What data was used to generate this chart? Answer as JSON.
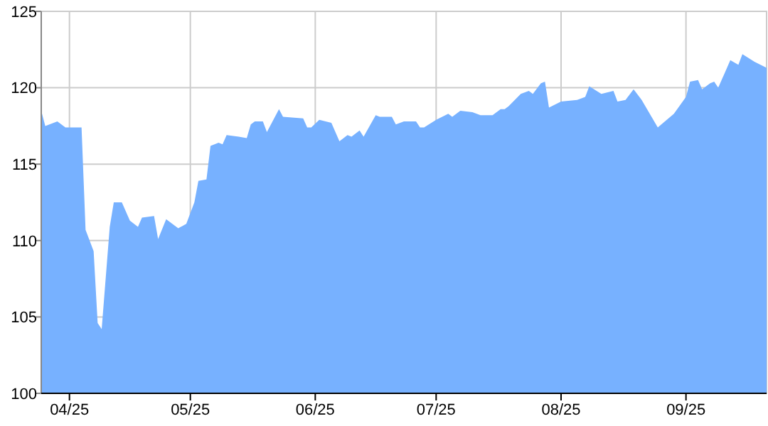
{
  "chart_data": {
    "type": "area",
    "x": [
      "2025-03-25",
      "2025-03-26",
      "2025-03-29",
      "2025-03-31",
      "2025-04-04",
      "2025-04-05",
      "2025-04-07",
      "2025-04-08",
      "2025-04-09",
      "2025-04-11",
      "2025-04-12",
      "2025-04-14",
      "2025-04-16",
      "2025-04-18",
      "2025-04-19",
      "2025-04-22",
      "2025-04-23",
      "2025-04-25",
      "2025-04-28",
      "2025-04-30",
      "2025-05-02",
      "2025-05-03",
      "2025-05-05",
      "2025-05-06",
      "2025-05-08",
      "2025-05-09",
      "2025-05-10",
      "2025-05-13",
      "2025-05-15",
      "2025-05-16",
      "2025-05-17",
      "2025-05-19",
      "2025-05-20",
      "2025-05-23",
      "2025-05-24",
      "2025-05-29",
      "2025-05-30",
      "2025-05-31",
      "2025-06-02",
      "2025-06-05",
      "2025-06-07",
      "2025-06-09",
      "2025-06-10",
      "2025-06-12",
      "2025-06-13",
      "2025-06-16",
      "2025-06-17",
      "2025-06-20",
      "2025-06-21",
      "2025-06-23",
      "2025-06-26",
      "2025-06-27",
      "2025-06-28",
      "2025-07-01",
      "2025-07-04",
      "2025-07-05",
      "2025-07-07",
      "2025-07-10",
      "2025-07-12",
      "2025-07-15",
      "2025-07-17",
      "2025-07-18",
      "2025-07-19",
      "2025-07-22",
      "2025-07-24",
      "2025-07-25",
      "2025-07-27",
      "2025-07-28",
      "2025-07-29",
      "2025-08-01",
      "2025-08-05",
      "2025-08-07",
      "2025-08-08",
      "2025-08-11",
      "2025-08-14",
      "2025-08-15",
      "2025-08-17",
      "2025-08-19",
      "2025-08-21",
      "2025-08-25",
      "2025-08-29",
      "2025-09-01",
      "2025-09-02",
      "2025-09-04",
      "2025-09-05",
      "2025-09-07",
      "2025-09-08",
      "2025-09-09",
      "2025-09-12",
      "2025-09-14",
      "2025-09-15",
      "2025-09-18",
      "2025-09-21"
    ],
    "series": [
      {
        "color": "#77b1ff",
        "values": [
          118.5,
          117.5,
          117.8,
          117.4,
          117.4,
          110.7,
          109.3,
          104.6,
          104.2,
          110.9,
          112.5,
          112.5,
          111.3,
          110.9,
          111.5,
          111.6,
          110.1,
          111.4,
          110.8,
          111.1,
          112.5,
          113.9,
          114.0,
          116.2,
          116.4,
          116.3,
          116.9,
          116.8,
          116.7,
          117.6,
          117.8,
          117.8,
          117.1,
          118.6,
          118.1,
          118.0,
          117.4,
          117.4,
          117.9,
          117.7,
          116.5,
          116.9,
          116.8,
          117.2,
          116.8,
          118.2,
          118.1,
          118.1,
          117.6,
          117.8,
          117.8,
          117.4,
          117.4,
          117.9,
          118.3,
          118.1,
          118.5,
          118.4,
          118.2,
          118.2,
          118.6,
          118.6,
          118.8,
          119.6,
          119.8,
          119.6,
          120.3,
          120.4,
          118.7,
          119.1,
          119.2,
          119.4,
          120.1,
          119.6,
          119.8,
          119.1,
          119.2,
          119.9,
          119.2,
          117.4,
          118.3,
          119.4,
          120.4,
          120.5,
          119.9,
          120.3,
          120.4,
          120.0,
          121.8,
          121.5,
          122.2,
          121.7,
          121.3
        ]
      }
    ],
    "xlim": [
      "2025-03-25",
      "2025-09-21"
    ],
    "xticks": [
      {
        "value": "2025-04-01",
        "label": "04/25"
      },
      {
        "value": "2025-05-01",
        "label": "05/25"
      },
      {
        "value": "2025-06-01",
        "label": "06/25"
      },
      {
        "value": "2025-07-01",
        "label": "07/25"
      },
      {
        "value": "2025-08-01",
        "label": "08/25"
      },
      {
        "value": "2025-09-01",
        "label": "09/25"
      }
    ],
    "ylim": [
      100,
      125
    ],
    "yticks": [
      100,
      105,
      110,
      115,
      120,
      125
    ],
    "grid": true
  }
}
